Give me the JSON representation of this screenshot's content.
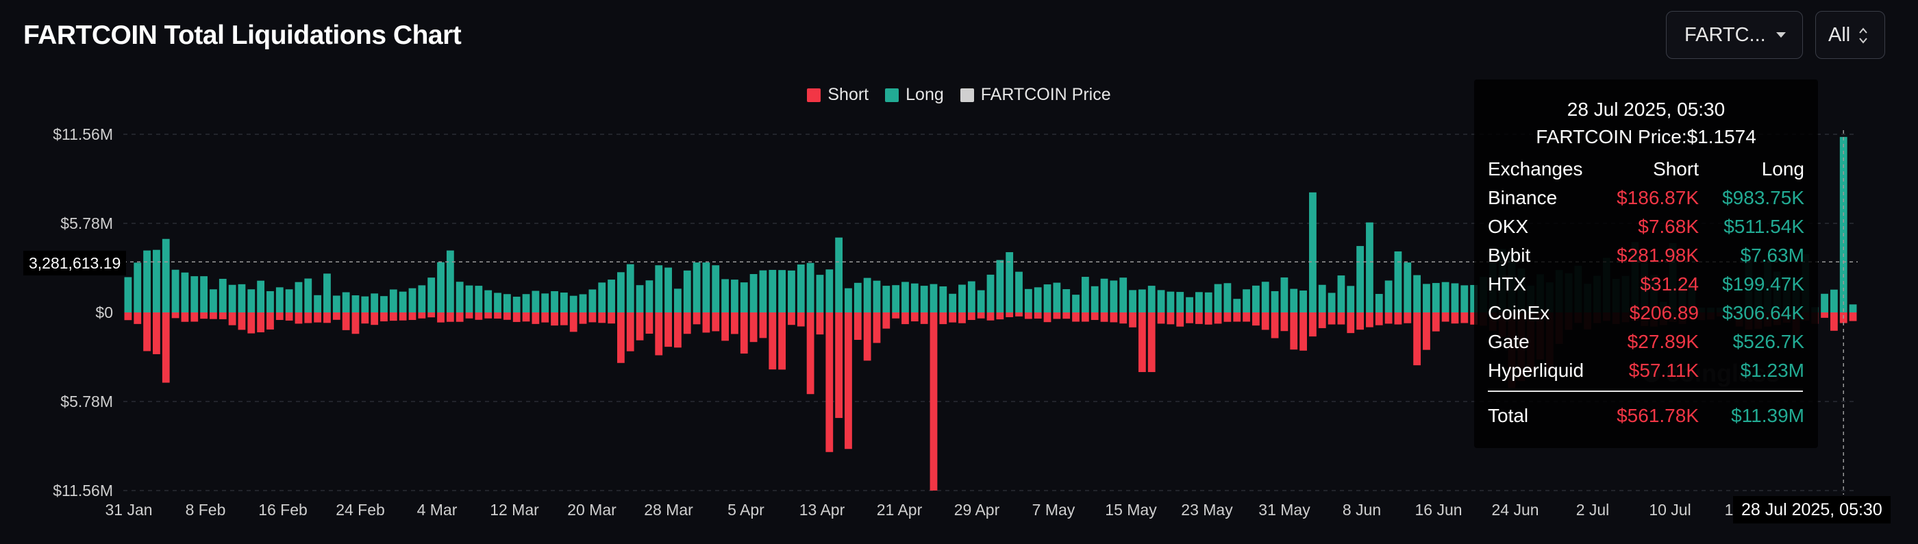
{
  "header": {
    "title": "FARTCOIN Total Liquidations Chart",
    "symbol_select": "FARTC...",
    "range_select": "All"
  },
  "legend": [
    {
      "label": "Short",
      "color": "#f23645"
    },
    {
      "label": "Long",
      "color": "#22ab94"
    },
    {
      "label": "FARTCOIN Price",
      "color": "#d0d0d0"
    }
  ],
  "crosshair": {
    "y_value": "3,281,613.19",
    "x_label": "28 Jul 2025, 05:30"
  },
  "tooltip": {
    "date": "28 Jul 2025, 05:30",
    "price": "FARTCOIN Price:$1.1574",
    "headers": [
      "Exchanges",
      "Short",
      "Long"
    ],
    "rows": [
      {
        "exchange": "Binance",
        "short": "$186.87K",
        "long": "$983.75K"
      },
      {
        "exchange": "OKX",
        "short": "$7.68K",
        "long": "$511.54K"
      },
      {
        "exchange": "Bybit",
        "short": "$281.98K",
        "long": "$7.63M"
      },
      {
        "exchange": "HTX",
        "short": "$31.24",
        "long": "$199.47K"
      },
      {
        "exchange": "CoinEx",
        "short": "$206.89",
        "long": "$306.64K"
      },
      {
        "exchange": "Gate",
        "short": "$27.89K",
        "long": "$526.7K"
      },
      {
        "exchange": "Hyperliquid",
        "short": "$57.11K",
        "long": "$1.23M"
      }
    ],
    "total": {
      "label": "Total",
      "short": "$561.78K",
      "long": "$11.39M"
    }
  },
  "watermark": "coinglass",
  "chart_data": {
    "type": "bar",
    "x_tick_labels": [
      "31 Jan",
      "8 Feb",
      "16 Feb",
      "24 Feb",
      "4 Mar",
      "12 Mar",
      "20 Mar",
      "28 Mar",
      "5 Apr",
      "13 Apr",
      "21 Apr",
      "29 Apr",
      "7 May",
      "15 May",
      "23 May",
      "31 May",
      "8 Jun",
      "16 Jun",
      "24 Jun",
      "2 Jul",
      "10 Jul",
      "1"
    ],
    "y_tick_labels": [
      "$11.56M",
      "$5.78M",
      "$0",
      "$5.78M",
      "$11.56M"
    ],
    "ylim": [
      -11.56,
      11.56
    ],
    "y_unit": "M",
    "grid": true,
    "legend_position": "top-center",
    "series": [
      {
        "name": "Long",
        "color": "#22ab94",
        "values": [
          2.29,
          3.23,
          4.02,
          4.06,
          4.77,
          2.77,
          2.59,
          2.35,
          2.35,
          1.5,
          2.18,
          1.79,
          1.83,
          1.5,
          2.06,
          1.38,
          1.63,
          1.5,
          1.97,
          2.2,
          1.12,
          2.52,
          1.09,
          1.31,
          1.11,
          1.04,
          1.23,
          1.06,
          1.49,
          1.35,
          1.57,
          1.76,
          2.26,
          3.26,
          4.02,
          1.99,
          1.75,
          1.73,
          1.44,
          1.27,
          1.19,
          1.02,
          1.19,
          1.4,
          1.23,
          1.38,
          1.29,
          1.08,
          1.18,
          1.49,
          1.94,
          2.13,
          2.61,
          3.13,
          1.77,
          2.08,
          3.06,
          2.91,
          1.54,
          2.72,
          3.24,
          3.24,
          3.06,
          2.16,
          2.13,
          1.95,
          2.49,
          2.73,
          2.76,
          2.75,
          2.72,
          3.11,
          3.21,
          2.44,
          2.79,
          4.86,
          1.57,
          1.92,
          2.24,
          2.06,
          1.73,
          1.77,
          1.98,
          1.88,
          1.73,
          1.84,
          1.69,
          1.21,
          1.8,
          2.02,
          1.44,
          2.45,
          3.4,
          3.91,
          2.64,
          1.52,
          1.63,
          1.82,
          1.93,
          1.51,
          1.15,
          2.31,
          1.7,
          2.19,
          2.07,
          2.26,
          1.45,
          1.49,
          1.73,
          1.45,
          1.35,
          1.33,
          0.99,
          1.32,
          1.3,
          1.84,
          1.9,
          0.88,
          1.5,
          1.74,
          1.99,
          1.38,
          2.27,
          1.53,
          1.42,
          7.79,
          1.79,
          1.27,
          2.4,
          1.72,
          4.31,
          5.84,
          1.2,
          2.07,
          3.96,
          3.24,
          2.42,
          1.85,
          1.91,
          1.97,
          1.89,
          1.76,
          1.78,
          2.31,
          3.38,
          4.12,
          3.65,
          2.86,
          1.74,
          2.48,
          1.95,
          2.75,
          2.54,
          3.03,
          1.86,
          2.38,
          3.54,
          2.18,
          2.37,
          4.57,
          3.2,
          2.44,
          0.69,
          4.5,
          2.04,
          1.85,
          0.31,
          0.31,
          0.31,
          0.37,
          0.37,
          3.57,
          2.22,
          3.35,
          2.65,
          2.27,
          1.89,
          3.78,
          0.34,
          1.21,
          1.48,
          11.39,
          0.52
        ]
      },
      {
        "name": "Short",
        "color": "#f23645",
        "values": [
          0.5,
          0.75,
          2.51,
          2.71,
          4.56,
          0.37,
          0.61,
          0.6,
          0.41,
          0.43,
          0.44,
          0.83,
          1.13,
          1.36,
          1.29,
          1.11,
          0.49,
          0.53,
          0.73,
          0.69,
          0.65,
          0.68,
          0.48,
          1.15,
          1.39,
          0.72,
          0.81,
          0.58,
          0.54,
          0.52,
          0.49,
          0.39,
          0.32,
          0.65,
          0.61,
          0.61,
          0.39,
          0.48,
          0.39,
          0.4,
          0.48,
          0.62,
          0.59,
          0.75,
          0.65,
          0.85,
          0.83,
          1.26,
          0.74,
          0.64,
          0.68,
          0.72,
          3.28,
          2.52,
          1.81,
          1.38,
          2.78,
          2.23,
          2.28,
          1.39,
          0.77,
          1.31,
          1.22,
          1.84,
          1.4,
          2.67,
          1.92,
          1.66,
          3.7,
          3.71,
          0.81,
          0.91,
          5.3,
          1.43,
          9.06,
          6.85,
          8.86,
          1.78,
          3.13,
          1.98,
          1.05,
          0.39,
          0.76,
          0.58,
          0.75,
          11.56,
          0.76,
          0.65,
          0.7,
          0.49,
          0.39,
          0.52,
          0.45,
          0.31,
          0.26,
          0.42,
          0.4,
          0.63,
          0.42,
          0.41,
          0.6,
          0.6,
          0.49,
          0.61,
          0.64,
          0.72,
          0.97,
          3.87,
          3.87,
          0.73,
          0.77,
          0.92,
          0.7,
          0.75,
          0.79,
          0.73,
          0.61,
          0.6,
          0.6,
          0.85,
          1.13,
          1.67,
          1.21,
          2.41,
          2.48,
          1.56,
          1.02,
          0.78,
          0.78,
          1.34,
          1.12,
          0.96,
          0.83,
          0.73,
          0.78,
          0.7,
          3.43,
          2.43,
          1.23,
          0.6,
          0.72,
          0.69,
          0.79,
          0.86,
          1.19,
          1.59,
          4.9,
          4.45,
          3.95,
          3.06,
          3.8,
          2.04,
          1.13,
          0.68,
          1.1,
          0.69,
          0.55,
          0.75,
          0.64,
          0.55,
          0.88,
          0.92,
          0.82,
          0.61,
          0.75,
          0.45,
          0.5,
          0.46,
          0.26,
          0.27,
          0.91,
          1.11,
          1.06,
          0.92,
          0.82,
          0.67,
          1.53,
          0.53,
          0.74,
          0.35,
          1.19,
          0.69,
          0.56,
          0.3
        ]
      }
    ]
  }
}
